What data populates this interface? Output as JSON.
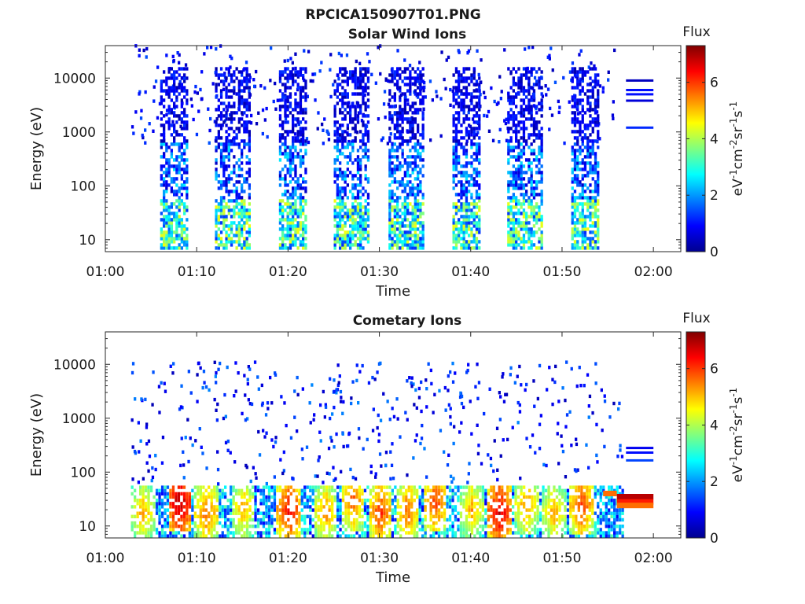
{
  "figure": {
    "title": "RPCICA150907T01.PNG"
  },
  "chart_data": [
    {
      "type": "heatmap",
      "title": "Solar Wind Ions",
      "xlabel": "Time",
      "ylabel": "Energy (eV)",
      "yscale": "log",
      "xlim": [
        "01:00",
        "02:03"
      ],
      "ylim": [
        6,
        40000
      ],
      "x_tick_labels": [
        "01:00",
        "01:10",
        "01:20",
        "01:30",
        "01:40",
        "01:50",
        "02:00"
      ],
      "y_tick_labels": [
        "10",
        "100",
        "1000",
        "10000"
      ],
      "colorbar": {
        "title": "Flux",
        "label": "eV-1cm-2sr-1s-1",
        "range": [
          0,
          7.3
        ],
        "tick_labels": [
          "0",
          "2",
          "4",
          "6"
        ]
      },
      "bursts": [
        {
          "start": "01:06",
          "end": "01:08"
        },
        {
          "start": "01:12",
          "end": "01:15"
        },
        {
          "start": "01:19",
          "end": "01:21"
        },
        {
          "start": "01:25",
          "end": "01:28"
        },
        {
          "start": "01:31",
          "end": "01:34"
        },
        {
          "start": "01:38",
          "end": "01:40"
        },
        {
          "start": "01:44",
          "end": "01:47"
        },
        {
          "start": "01:51",
          "end": "01:53"
        }
      ],
      "bands_after_end": [
        {
          "start": "01:57",
          "end": "02:00",
          "energy": 9000,
          "level": 0.4
        },
        {
          "start": "01:57",
          "end": "02:00",
          "energy": 6000,
          "level": 1.0
        },
        {
          "start": "01:57",
          "end": "02:00",
          "energy": 5000,
          "level": 1.0
        },
        {
          "start": "01:57",
          "end": "02:00",
          "energy": 3800,
          "level": 0.6
        },
        {
          "start": "01:57",
          "end": "02:00",
          "energy": 1200,
          "level": 1.2
        }
      ]
    },
    {
      "type": "heatmap",
      "title": "Cometary Ions",
      "xlabel": "Time",
      "ylabel": "Energy (eV)",
      "yscale": "log",
      "xlim": [
        "01:00",
        "02:03"
      ],
      "ylim": [
        6,
        40000
      ],
      "x_tick_labels": [
        "01:00",
        "01:10",
        "01:20",
        "01:30",
        "01:40",
        "01:50",
        "02:00"
      ],
      "y_tick_labels": [
        "10",
        "100",
        "1000",
        "10000"
      ],
      "colorbar": {
        "title": "Flux",
        "label": "eV-1cm-2sr-1s-1",
        "range": [
          0,
          7.3
        ],
        "tick_labels": [
          "0",
          "2",
          "4",
          "6"
        ]
      },
      "hot_spots": [
        {
          "time": "01:04",
          "energy": 18,
          "level": 5.0
        },
        {
          "time": "01:08",
          "energy": 28,
          "level": 6.8
        },
        {
          "time": "01:11",
          "energy": 18,
          "level": 5.5
        },
        {
          "time": "01:15",
          "energy": 22,
          "level": 5.0
        },
        {
          "time": "01:20",
          "energy": 20,
          "level": 6.2
        },
        {
          "time": "01:24",
          "energy": 18,
          "level": 5.2
        },
        {
          "time": "01:27",
          "energy": 30,
          "level": 5.5
        },
        {
          "time": "01:30",
          "energy": 18,
          "level": 5.8
        },
        {
          "time": "01:33",
          "energy": 20,
          "level": 5.5
        },
        {
          "time": "01:36",
          "energy": 28,
          "level": 5.8
        },
        {
          "time": "01:40",
          "energy": 20,
          "level": 5.0
        },
        {
          "time": "01:43",
          "energy": 18,
          "level": 6.5
        },
        {
          "time": "01:46",
          "energy": 25,
          "level": 5.2
        },
        {
          "time": "01:49",
          "energy": 18,
          "level": 5.0
        },
        {
          "time": "01:52",
          "energy": 25,
          "level": 5.8
        }
      ],
      "bands_after_end": [
        {
          "start": "01:54.5",
          "end": "01:56",
          "energy": 40,
          "level": 5.6
        },
        {
          "start": "01:56",
          "end": "02:00",
          "energy": 35,
          "level": 6.9
        },
        {
          "start": "01:56",
          "end": "02:00",
          "energy": 28,
          "level": 6.2
        },
        {
          "start": "01:56",
          "end": "02:00",
          "energy": 24,
          "level": 5.6
        },
        {
          "start": "01:57",
          "end": "02:00",
          "energy": 280,
          "level": 0.8
        },
        {
          "start": "01:57",
          "end": "02:00",
          "energy": 230,
          "level": 1.0
        },
        {
          "start": "01:57",
          "end": "02:00",
          "energy": 165,
          "level": 1.4
        }
      ]
    }
  ]
}
